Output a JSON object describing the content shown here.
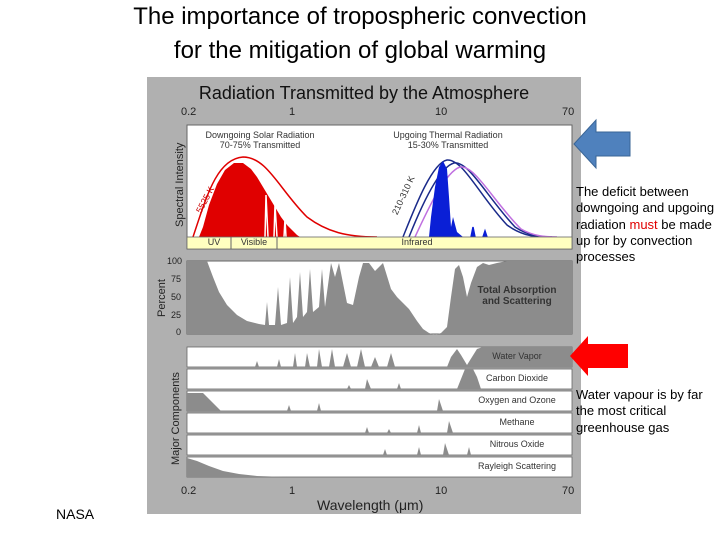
{
  "title": {
    "line1": "The importance of tropospheric convection",
    "line2": "for the mitigation of global warming"
  },
  "figure": {
    "title": "Radiation Transmitted by the Atmosphere",
    "top_axis_ticks": [
      "0.2",
      "1",
      "10",
      "70"
    ],
    "bottom_axis_ticks": [
      "0.2",
      "1",
      "10",
      "70"
    ],
    "xlabel": "Wavelength (μm)",
    "spectral_panel": {
      "ylabel": "Spectral Intensity",
      "solar_label_1": "Downgoing Solar Radiation",
      "solar_label_2": "70-75% Transmitted",
      "thermal_label_1": "Upgoing Thermal Radiation",
      "thermal_label_2": "15-30% Transmitted",
      "solar_temp": "5525 K",
      "thermal_temp": "210-310 K",
      "band_uv": "UV",
      "band_visible": "Visible",
      "band_infrared": "Infrared",
      "solar_color": "#e00000",
      "thermal_color": "#0a1fd6"
    },
    "absorption_panel": {
      "ylabel": "Percent",
      "yticks": [
        "100",
        "75",
        "50",
        "25",
        "0"
      ],
      "label_1": "Total Absorption",
      "label_2": "and Scattering"
    },
    "components": {
      "ylabel": "Major Components",
      "rows": [
        "Water Vapor",
        "Carbon Dioxide",
        "Oxygen and Ozone",
        "Methane",
        "Nitrous Oxide",
        "Rayleigh Scattering"
      ]
    }
  },
  "annotations": {
    "deficit_pre": "The deficit between downgoing and upgoing radiation ",
    "deficit_emph": "must",
    "deficit_post": " be made up for by convection processes",
    "vapour": "Water vapour is by far the most critical greenhouse gas",
    "blue_arrow_color": "#4f81bd",
    "red_arrow_color": "#ff0000"
  },
  "credit": "NASA"
}
